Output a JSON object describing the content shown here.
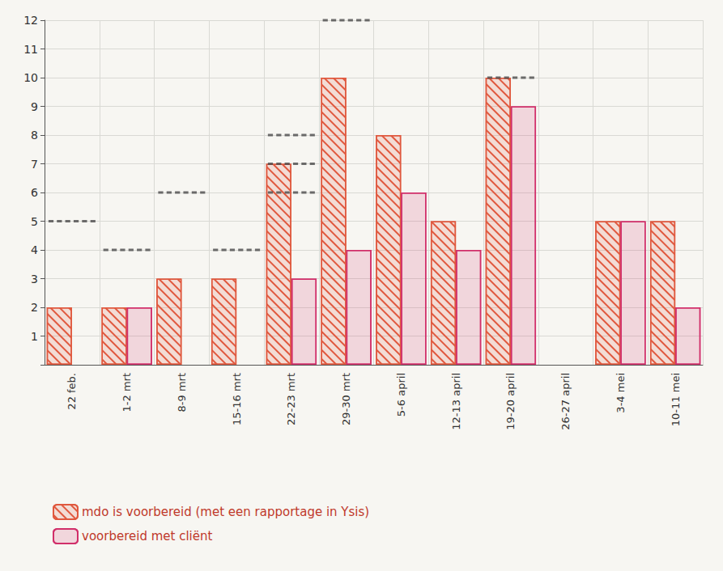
{
  "chart_data": {
    "type": "bar",
    "categories": [
      "22 feb.",
      "1-2 mrt",
      "8-9 mrt",
      "15-16 mrt",
      "22-23 mrt",
      "29-30 mrt",
      "5-6 april",
      "12-13 april",
      "19-20 april",
      "26-27 april",
      "3-4 mei",
      "10-11 mei"
    ],
    "series": [
      {
        "name": "mdo is voorbereid (met een rapportage in Ysis)",
        "color": "#e0583e",
        "marker": "hatch",
        "values": [
          2,
          2,
          3,
          3,
          7,
          10,
          8,
          5,
          10,
          null,
          5,
          5
        ]
      },
      {
        "name": "voorbereid met cliënt",
        "color": "#d12f6a",
        "marker": "dots",
        "values": [
          null,
          2,
          null,
          null,
          3,
          4,
          6,
          4,
          9,
          null,
          5,
          2
        ]
      },
      {
        "type": "scatter",
        "marker": "dash",
        "line_style": "dashed",
        "color": "#4a4a4a",
        "values": [
          5,
          4,
          6,
          4,
          8,
          12,
          null,
          null,
          10,
          null,
          null,
          null
        ]
      },
      {
        "type": "scatter",
        "marker": "dash",
        "line_style": "dashed",
        "color": "#4a4a4a",
        "values": [
          null,
          null,
          null,
          null,
          7,
          null,
          null,
          null,
          null,
          null,
          null,
          null
        ]
      },
      {
        "type": "scatter",
        "marker": "dash",
        "line_style": "dashed",
        "color": "#4a4a4a",
        "values": [
          null,
          null,
          null,
          null,
          6,
          null,
          null,
          null,
          null,
          null,
          null,
          null
        ]
      }
    ],
    "ylim": [
      0,
      12
    ],
    "yticks": [
      1,
      2,
      3,
      4,
      5,
      6,
      7,
      8,
      9,
      10,
      11,
      12
    ],
    "grid": true,
    "legend": "bottom left"
  }
}
